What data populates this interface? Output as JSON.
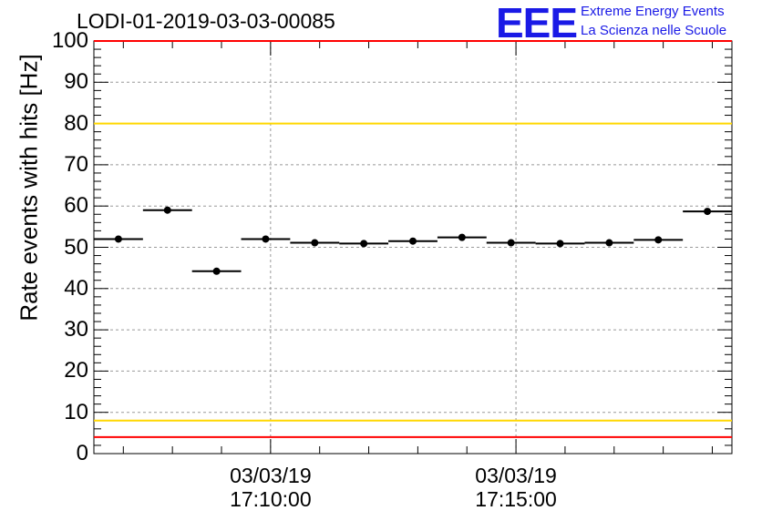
{
  "chart_data": {
    "type": "scatter",
    "title": "LODI-01-2019-03-03-00085",
    "ylabel": "Rate events with hits [Hz]",
    "xlabel": "",
    "ylim": [
      0,
      100
    ],
    "y_ticks": [
      "0",
      "10",
      "20",
      "30",
      "40",
      "50",
      "60",
      "70",
      "80",
      "90",
      "100"
    ],
    "x_ticks": [
      {
        "date": "03/03/19",
        "time": "17:10:00",
        "minute": 10
      },
      {
        "date": "03/03/19",
        "time": "17:15:00",
        "minute": 15
      }
    ],
    "x_range_minutes": [
      6.4,
      19.4
    ],
    "grid": true,
    "points": [
      {
        "x": 6.9,
        "y": 52
      },
      {
        "x": 7.9,
        "y": 59
      },
      {
        "x": 8.9,
        "y": 44.2
      },
      {
        "x": 9.9,
        "y": 52
      },
      {
        "x": 10.9,
        "y": 51.1
      },
      {
        "x": 11.9,
        "y": 50.9
      },
      {
        "x": 12.9,
        "y": 51.5
      },
      {
        "x": 13.9,
        "y": 52.4
      },
      {
        "x": 14.9,
        "y": 51.1
      },
      {
        "x": 15.9,
        "y": 50.9
      },
      {
        "x": 16.9,
        "y": 51.1
      },
      {
        "x": 17.9,
        "y": 51.8
      },
      {
        "x": 18.9,
        "y": 58.7
      }
    ],
    "x_error_half_width": 0.5,
    "reference_lines": [
      {
        "y": 100,
        "color": "#ff0000"
      },
      {
        "y": 80,
        "color": "#ffd700"
      },
      {
        "y": 8,
        "color": "#ffd700"
      },
      {
        "y": 4,
        "color": "#ff0000"
      }
    ]
  },
  "logo": {
    "mark": "EEE",
    "line1": "Extreme Energy Events",
    "line2": "La Scienza nelle Scuole"
  },
  "colors": {
    "logo": "#1a1ae6",
    "marker": "#000000",
    "grid": "#999999"
  }
}
